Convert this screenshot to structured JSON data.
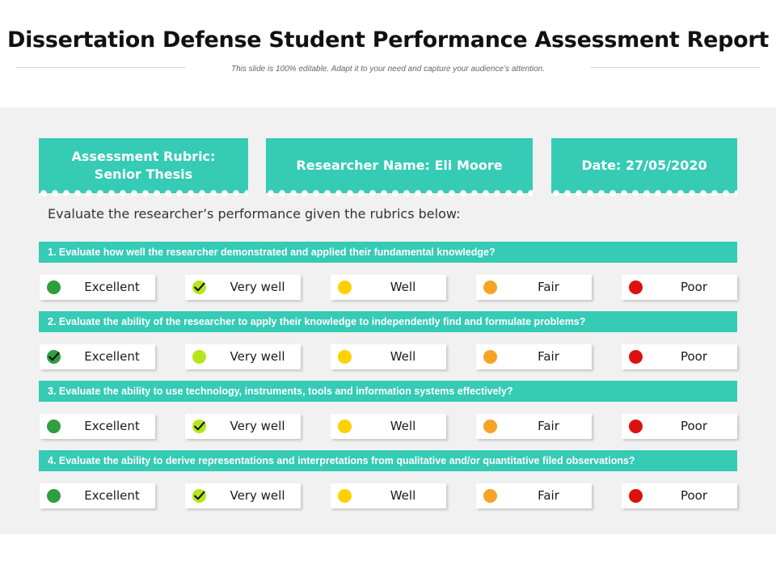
{
  "header": {
    "title": "Dissertation Defense Student Performance Assessment Report",
    "subtitle": "This slide is 100% editable. Adapt it to your need and capture your audience’s attention."
  },
  "info_boxes": {
    "rubric": "Assessment Rubric:\nSenior Thesis",
    "researcher": "Researcher Name: Eli Moore",
    "date": "Date: 27/05/2020"
  },
  "instruction": "Evaluate the researcher’s performance given the rubrics below:",
  "rating_colors": {
    "excellent": "#2e9e3e",
    "very_well": "#b6e619",
    "well": "#ffd100",
    "fair": "#f7a325",
    "poor": "#dd1010"
  },
  "accent_color": "#35cbb5",
  "questions": [
    {
      "text": "1. Evaluate how well the researcher demonstrated and applied their fundamental knowledge?",
      "options": [
        "Excellent",
        "Very well",
        "Well",
        "Fair",
        "Poor"
      ],
      "selected": "Very well"
    },
    {
      "text": "2. Evaluate the ability of the researcher to apply their knowledge to independently find and formulate problems?",
      "options": [
        "Excellent",
        "Very well",
        "Well",
        "Fair",
        "Poor"
      ],
      "selected": "Excellent"
    },
    {
      "text": "3. Evaluate the ability to use technology, instruments, tools and information systems effectively?",
      "options": [
        "Excellent",
        "Very well",
        "Well",
        "Fair",
        "Poor"
      ],
      "selected": "Very well"
    },
    {
      "text": "4. Evaluate the ability to derive representations and interpretations from qualitative and/or quantitative filed observations?",
      "options": [
        "Excellent",
        "Very well",
        "Well",
        "Fair",
        "Poor"
      ],
      "selected": "Very well"
    }
  ]
}
